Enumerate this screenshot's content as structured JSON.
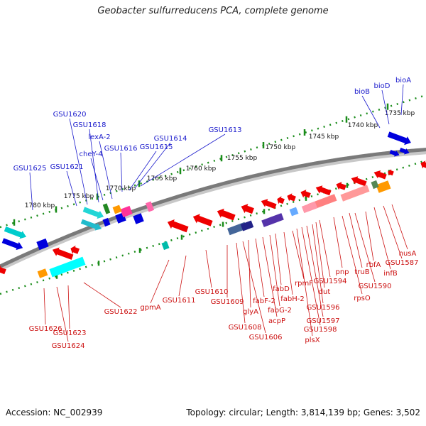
{
  "title": "Geobacter sulfurreducens PCA, complete genome",
  "footer": {
    "accession": "Accession: NC_002939",
    "stats": "Topology: circular; Length: 3,814,139 bp; Genes: 3,502"
  },
  "colors": {
    "backbone": "#7a7a7a",
    "tick": "#1a8c1a",
    "forward_label": "#1a1acc",
    "reverse_label": "#cc1111"
  },
  "scale_labels": [
    "1735 kbp",
    "1740 kbp",
    "1745 kbp",
    "1750 kbp",
    "1755 kbp",
    "1760 kbp",
    "1765 kbp",
    "1770 kbp",
    "1775 kbp",
    "1780 kbp"
  ],
  "forward_genes": [
    "bioA",
    "bioD",
    "bioB",
    "GSU1613",
    "GSU1614",
    "GSU1615",
    "GSU1616",
    "cheY-4",
    "lexA-2",
    "GSU1618",
    "GSU1620",
    "GSU1621",
    "GSU1625"
  ],
  "reverse_genes": [
    "nusA",
    "GSU1587",
    "infB",
    "rbfA",
    "GSU1590",
    "truB",
    "rpsO",
    "pnp",
    "GSU1594",
    "dut",
    "GSU1596",
    "GSU1597",
    "GSU1598",
    "plsX",
    "rpmF",
    "fabH-2",
    "fabD",
    "fabG-2",
    "acpP",
    "fabF-2",
    "glyA",
    "GSU1606",
    "GSU1608",
    "GSU1609",
    "GSU1610",
    "GSU1611",
    "gpmA",
    "GSU1622",
    "GSU1623",
    "GSU1624",
    "GSU1626"
  ]
}
